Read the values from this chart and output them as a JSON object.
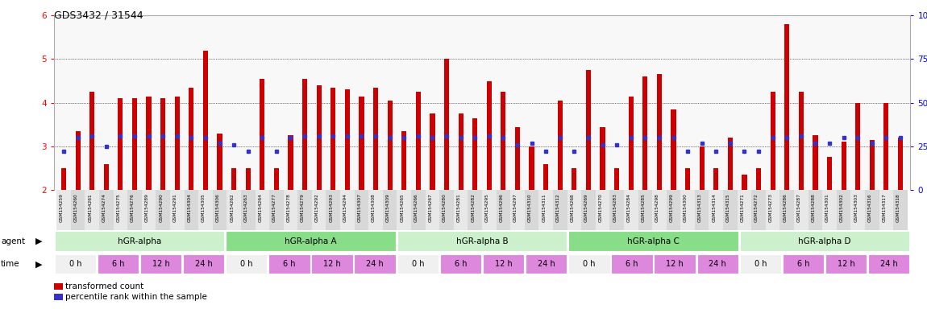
{
  "title": "GDS3432 / 31544",
  "samples": [
    "GSM154259",
    "GSM154260",
    "GSM154261",
    "GSM154274",
    "GSM154275",
    "GSM154276",
    "GSM154289",
    "GSM154290",
    "GSM154291",
    "GSM154304",
    "GSM154305",
    "GSM154306",
    "GSM154262",
    "GSM154263",
    "GSM154264",
    "GSM154277",
    "GSM154278",
    "GSM154279",
    "GSM154292",
    "GSM154293",
    "GSM154294",
    "GSM154307",
    "GSM154308",
    "GSM154309",
    "GSM154265",
    "GSM154266",
    "GSM154267",
    "GSM154280",
    "GSM154281",
    "GSM154282",
    "GSM154295",
    "GSM154296",
    "GSM154297",
    "GSM154310",
    "GSM154311",
    "GSM154312",
    "GSM154268",
    "GSM154269",
    "GSM154270",
    "GSM154283",
    "GSM154284",
    "GSM154285",
    "GSM154298",
    "GSM154299",
    "GSM154300",
    "GSM154313",
    "GSM154314",
    "GSM154315",
    "GSM154271",
    "GSM154272",
    "GSM154273",
    "GSM154286",
    "GSM154287",
    "GSM154288",
    "GSM154301",
    "GSM154302",
    "GSM154303",
    "GSM154316",
    "GSM154317",
    "GSM154318"
  ],
  "red_values": [
    2.5,
    3.35,
    4.25,
    2.6,
    4.1,
    4.1,
    4.15,
    4.1,
    4.15,
    4.35,
    5.2,
    3.3,
    2.5,
    2.5,
    4.55,
    2.5,
    3.25,
    4.55,
    4.4,
    4.35,
    4.3,
    4.15,
    4.35,
    4.05,
    3.35,
    4.25,
    3.75,
    5.0,
    3.75,
    3.65,
    4.5,
    4.25,
    3.45,
    3.0,
    2.6,
    4.05,
    2.5,
    4.75,
    3.45,
    2.5,
    4.15,
    4.6,
    4.65,
    3.85,
    2.5,
    3.0,
    2.5,
    3.2,
    2.35,
    2.5,
    4.25,
    5.8,
    4.25,
    3.25,
    2.75,
    3.1,
    4.0,
    3.15,
    4.0,
    3.2
  ],
  "blue_pct": [
    22,
    30,
    31,
    25,
    31,
    31,
    31,
    31,
    31,
    30,
    30,
    27,
    26,
    22,
    30,
    22,
    30,
    31,
    31,
    31,
    31,
    31,
    31,
    30,
    30,
    31,
    30,
    31,
    30,
    30,
    31,
    30,
    26,
    27,
    22,
    30,
    22,
    30,
    26,
    26,
    30,
    30,
    30,
    30,
    22,
    27,
    22,
    27,
    22,
    22,
    30,
    30,
    31,
    27,
    27,
    30,
    30,
    27,
    30,
    30
  ],
  "agents": [
    {
      "label": "hGR-alpha",
      "start": 0,
      "end": 12,
      "color": "#ccf0cc"
    },
    {
      "label": "hGR-alpha A",
      "start": 12,
      "end": 24,
      "color": "#88dd88"
    },
    {
      "label": "hGR-alpha B",
      "start": 24,
      "end": 36,
      "color": "#ccf0cc"
    },
    {
      "label": "hGR-alpha C",
      "start": 36,
      "end": 48,
      "color": "#88dd88"
    },
    {
      "label": "hGR-alpha D",
      "start": 48,
      "end": 60,
      "color": "#ccf0cc"
    }
  ],
  "times": [
    {
      "label": "0 h",
      "bg": "#f0f0f0",
      "start": 0,
      "end": 3
    },
    {
      "label": "6 h",
      "bg": "#dd88dd",
      "start": 3,
      "end": 6
    },
    {
      "label": "12 h",
      "bg": "#dd88dd",
      "start": 6,
      "end": 9
    },
    {
      "label": "24 h",
      "bg": "#dd88dd",
      "start": 9,
      "end": 12
    },
    {
      "label": "0 h",
      "bg": "#f0f0f0",
      "start": 12,
      "end": 15
    },
    {
      "label": "6 h",
      "bg": "#dd88dd",
      "start": 15,
      "end": 18
    },
    {
      "label": "12 h",
      "bg": "#dd88dd",
      "start": 18,
      "end": 21
    },
    {
      "label": "24 h",
      "bg": "#dd88dd",
      "start": 21,
      "end": 24
    },
    {
      "label": "0 h",
      "bg": "#f0f0f0",
      "start": 24,
      "end": 27
    },
    {
      "label": "6 h",
      "bg": "#dd88dd",
      "start": 27,
      "end": 30
    },
    {
      "label": "12 h",
      "bg": "#dd88dd",
      "start": 30,
      "end": 33
    },
    {
      "label": "24 h",
      "bg": "#dd88dd",
      "start": 33,
      "end": 36
    },
    {
      "label": "0 h",
      "bg": "#f0f0f0",
      "start": 36,
      "end": 39
    },
    {
      "label": "6 h",
      "bg": "#dd88dd",
      "start": 39,
      "end": 42
    },
    {
      "label": "12 h",
      "bg": "#dd88dd",
      "start": 42,
      "end": 45
    },
    {
      "label": "24 h",
      "bg": "#dd88dd",
      "start": 45,
      "end": 48
    },
    {
      "label": "0 h",
      "bg": "#f0f0f0",
      "start": 48,
      "end": 51
    },
    {
      "label": "6 h",
      "bg": "#dd88dd",
      "start": 51,
      "end": 54
    },
    {
      "label": "12 h",
      "bg": "#dd88dd",
      "start": 54,
      "end": 57
    },
    {
      "label": "24 h",
      "bg": "#dd88dd",
      "start": 57,
      "end": 60
    }
  ],
  "ylim_left": [
    2.0,
    6.0
  ],
  "ylim_right": [
    0,
    100
  ],
  "yticks_left": [
    2,
    3,
    4,
    5,
    6
  ],
  "yticks_right": [
    0,
    25,
    50,
    75,
    100
  ],
  "red_color": "#cc0000",
  "blue_color": "#3333cc",
  "baseline": 2.0,
  "bar_width": 0.35
}
